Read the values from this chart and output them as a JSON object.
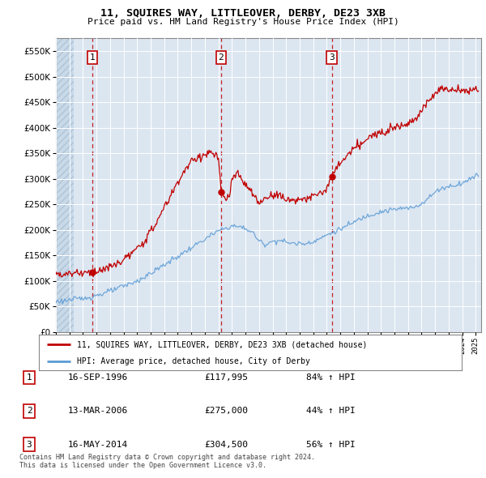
{
  "title": "11, SQUIRES WAY, LITTLEOVER, DERBY, DE23 3XB",
  "subtitle": "Price paid vs. HM Land Registry's House Price Index (HPI)",
  "y_ticks": [
    0,
    50000,
    100000,
    150000,
    200000,
    250000,
    300000,
    350000,
    400000,
    450000,
    500000,
    550000
  ],
  "ylim": [
    0,
    575000
  ],
  "xlim_start": 1994.0,
  "xlim_end": 2025.4,
  "purchases": [
    {
      "year": 1996.71,
      "price": 117995,
      "label": "1"
    },
    {
      "year": 2006.2,
      "price": 275000,
      "label": "2"
    },
    {
      "year": 2014.37,
      "price": 304500,
      "label": "3"
    }
  ],
  "legend_line1": "11, SQUIRES WAY, LITTLEOVER, DERBY, DE23 3XB (detached house)",
  "legend_line2": "HPI: Average price, detached house, City of Derby",
  "table_rows": [
    [
      "1",
      "16-SEP-1996",
      "£117,995",
      "84% ↑ HPI"
    ],
    [
      "2",
      "13-MAR-2006",
      "£275,000",
      "44% ↑ HPI"
    ],
    [
      "3",
      "16-MAY-2014",
      "£304,500",
      "56% ↑ HPI"
    ]
  ],
  "footer": "Contains HM Land Registry data © Crown copyright and database right 2024.\nThis data is licensed under the Open Government Licence v3.0.",
  "hpi_color": "#5b9bd5",
  "house_color": "#c00000",
  "vline_color": "#c00000",
  "grid_color": "#ffffff",
  "bg_color": "#dce6f1",
  "label_box_color": "#c00000"
}
